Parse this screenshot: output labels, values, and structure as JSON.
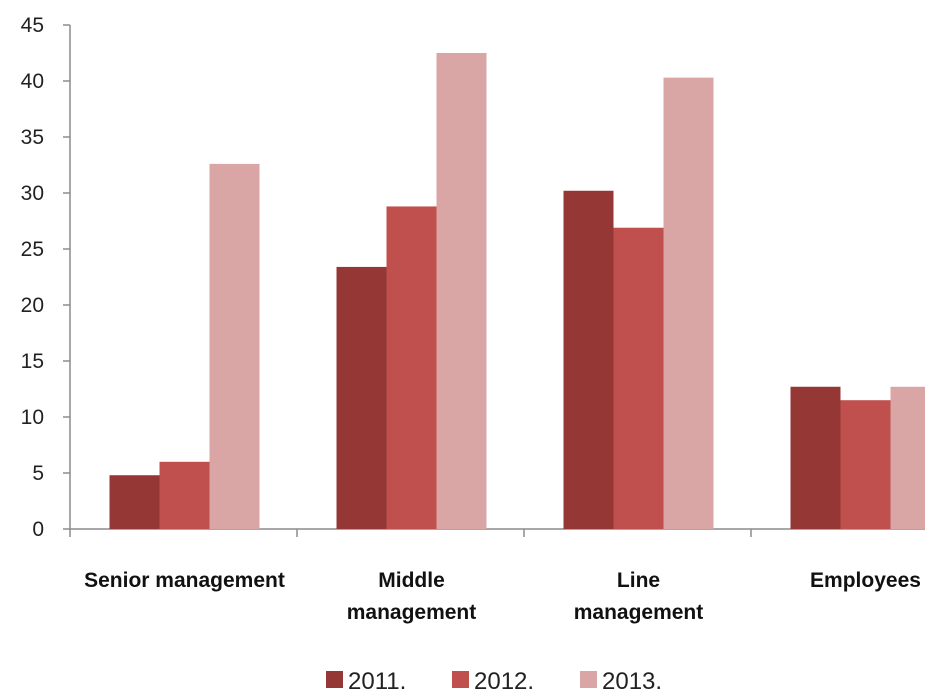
{
  "chart_data": {
    "type": "bar",
    "title": "",
    "xlabel": "",
    "ylabel": "",
    "ylim": [
      0,
      45
    ],
    "yticks": [
      0,
      5,
      10,
      15,
      20,
      25,
      30,
      35,
      40,
      45
    ],
    "grid": false,
    "legend_position": "bottom",
    "categories": [
      [
        "Senior management"
      ],
      [
        "Middle",
        "management"
      ],
      [
        "Line",
        "management"
      ],
      [
        "Employees"
      ]
    ],
    "series": [
      {
        "name": "2011.",
        "color": "#953735",
        "values": [
          4.8,
          23.4,
          30.2,
          12.7
        ]
      },
      {
        "name": "2012.",
        "color": "#c0504d",
        "values": [
          6.0,
          28.8,
          26.9,
          11.5
        ]
      },
      {
        "name": "2013.",
        "color": "#d9a5a5",
        "values": [
          32.6,
          42.5,
          40.3,
          12.7
        ]
      }
    ]
  }
}
